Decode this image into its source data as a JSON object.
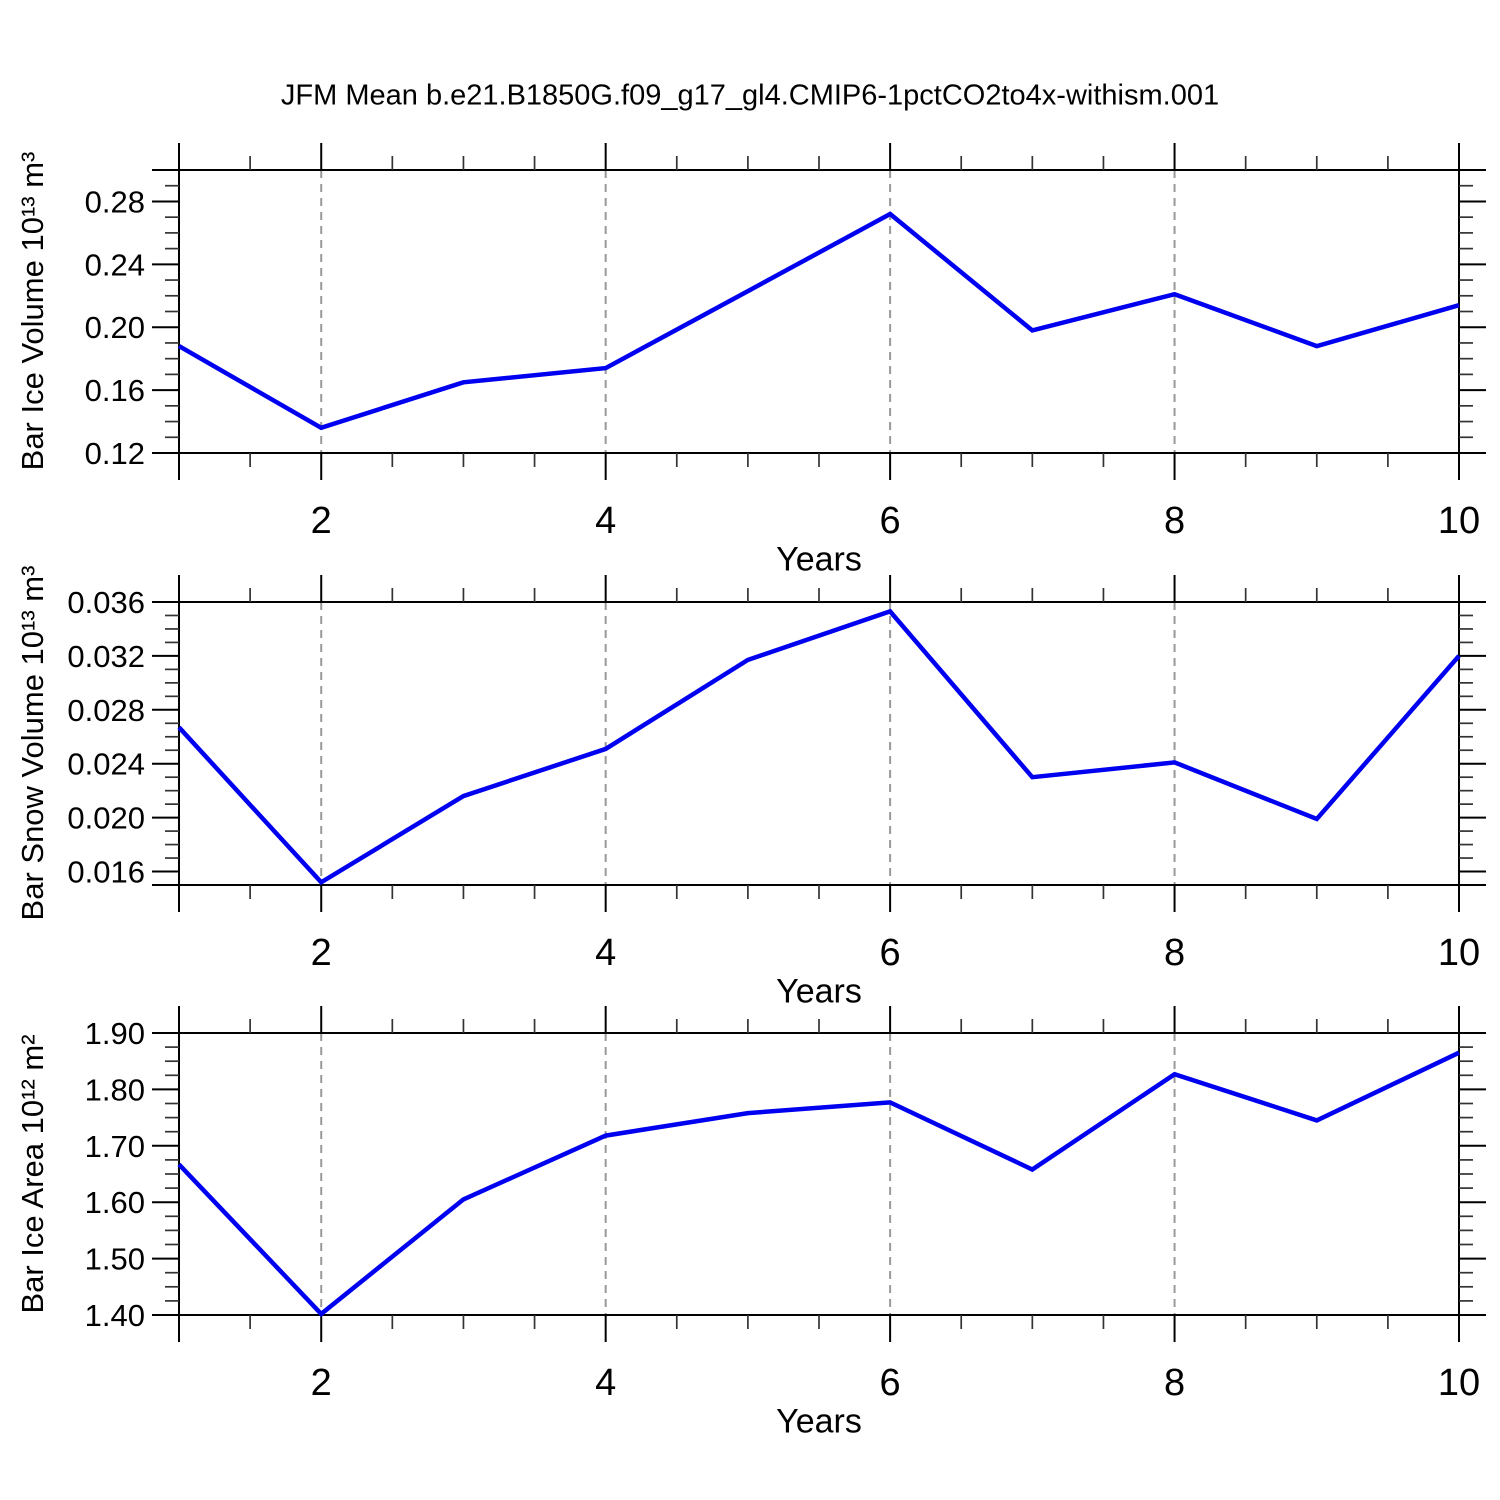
{
  "title": "JFM Mean b.e21.B1850G.f09_g17_gl4.CMIP6-1pctCO2to4x-withism.001",
  "style": {
    "line_color": "#0000f0",
    "grid_color": "#999999",
    "axis_color": "#000000",
    "minor_tick_color": "#333333",
    "background": "#ffffff"
  },
  "chart_data": [
    {
      "type": "line",
      "ylabel": "Bar Ice Volume 10¹³ m³",
      "xlabel": "Years",
      "x": [
        1,
        2,
        3,
        4,
        5,
        6,
        7,
        8,
        9,
        10
      ],
      "values": [
        0.188,
        0.136,
        0.165,
        0.174,
        0.223,
        0.272,
        0.198,
        0.221,
        0.188,
        0.214
      ],
      "xlim": [
        1,
        10
      ],
      "ylim": [
        0.12,
        0.3
      ],
      "yticks": [
        0.12,
        0.16,
        0.2,
        0.24,
        0.28
      ],
      "ytick_decimals": 2,
      "y_minor_step": 0.01,
      "xticks": [
        2,
        4,
        6,
        8,
        10
      ],
      "x_minor_step": 0.5,
      "gridlines_x": [
        2,
        4,
        6,
        8
      ],
      "grid": "dashed-vertical",
      "legend": "none"
    },
    {
      "type": "line",
      "ylabel": "Bar Snow Volume 10¹³ m³",
      "xlabel": "Years",
      "x": [
        1,
        2,
        3,
        4,
        5,
        6,
        7,
        8,
        9,
        10
      ],
      "values": [
        0.0267,
        0.0152,
        0.0216,
        0.0251,
        0.0317,
        0.0353,
        0.023,
        0.0241,
        0.0199,
        0.032
      ],
      "xlim": [
        1,
        10
      ],
      "ylim": [
        0.015,
        0.036
      ],
      "yticks": [
        0.016,
        0.02,
        0.024,
        0.028,
        0.032,
        0.036
      ],
      "ytick_decimals": 3,
      "y_minor_step": 0.001,
      "xticks": [
        2,
        4,
        6,
        8,
        10
      ],
      "x_minor_step": 0.5,
      "gridlines_x": [
        2,
        4,
        6,
        8
      ],
      "grid": "dashed-vertical",
      "legend": "none"
    },
    {
      "type": "line",
      "ylabel": "Bar Ice Area 10¹² m²",
      "xlabel": "Years",
      "x": [
        1,
        2,
        3,
        4,
        5,
        6,
        7,
        8,
        9,
        10
      ],
      "values": [
        1.667,
        1.402,
        1.605,
        1.718,
        1.758,
        1.777,
        1.658,
        1.827,
        1.745,
        1.865
      ],
      "xlim": [
        1,
        10
      ],
      "ylim": [
        1.4,
        1.9
      ],
      "yticks": [
        1.4,
        1.5,
        1.6,
        1.7,
        1.8,
        1.9
      ],
      "ytick_decimals": 2,
      "y_minor_step": 0.025,
      "xticks": [
        2,
        4,
        6,
        8,
        10
      ],
      "x_minor_step": 0.5,
      "gridlines_x": [
        2,
        4,
        6,
        8
      ],
      "grid": "dashed-vertical",
      "legend": "none"
    }
  ]
}
